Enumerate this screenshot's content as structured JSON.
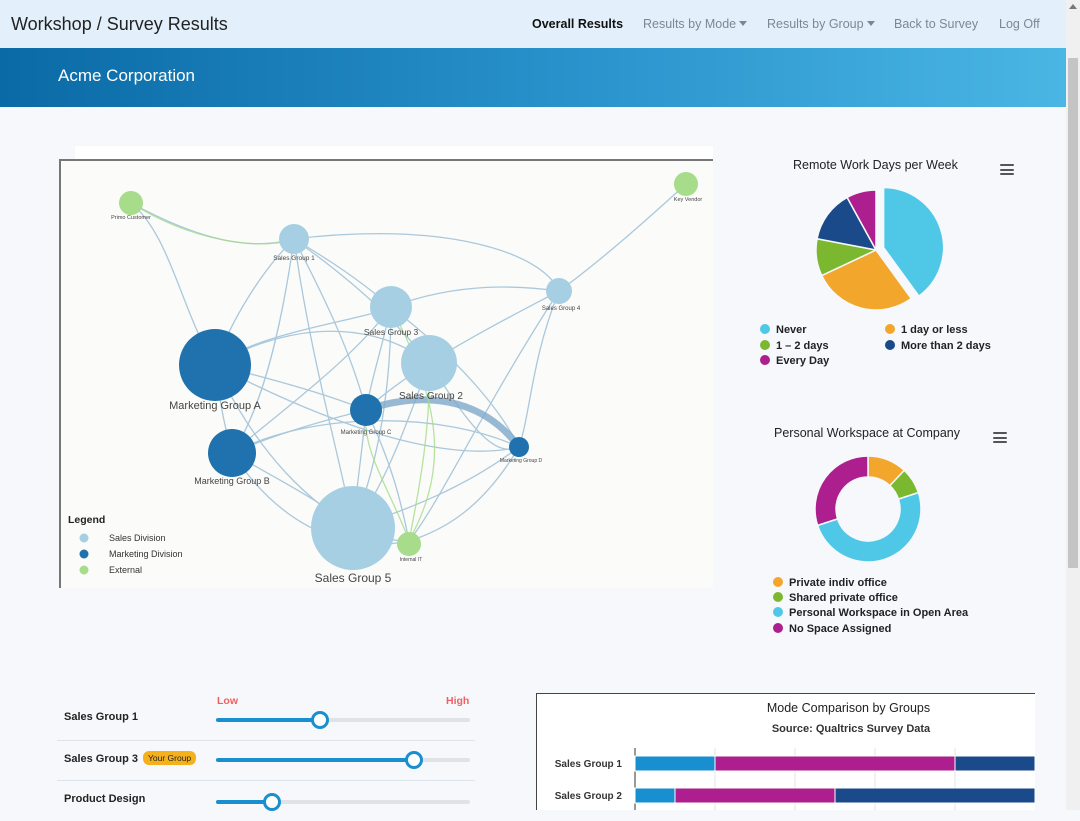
{
  "navbar": {
    "title": "Workshop / Survey Results",
    "items": [
      {
        "label": "Overall Results",
        "active": true
      },
      {
        "label": "Results by Mode",
        "dropdown": true
      },
      {
        "label": "Results by Group",
        "dropdown": true
      },
      {
        "label": "Back to Survey"
      },
      {
        "label": "Log Off"
      }
    ]
  },
  "banner": {
    "title": "Acme Corporation"
  },
  "network": {
    "legend_title": "Legend",
    "legend": [
      {
        "label": "Sales Division",
        "color": "#a7cfe4"
      },
      {
        "label": "Marketing Division",
        "color": "#1f72ad"
      },
      {
        "label": "External",
        "color": "#a6dc8a"
      }
    ],
    "nodes": [
      {
        "id": "primo",
        "label": "Primo Customer",
        "group": "External"
      },
      {
        "id": "key",
        "label": "Key Vendor",
        "group": "External"
      },
      {
        "id": "sg1",
        "label": "Sales Group 1",
        "group": "Sales Division"
      },
      {
        "id": "sg3",
        "label": "Sales Group 3",
        "group": "Sales Division"
      },
      {
        "id": "sg4",
        "label": "Sales Group 4",
        "group": "Sales Division"
      },
      {
        "id": "sg2",
        "label": "Sales Group 2",
        "group": "Sales Division"
      },
      {
        "id": "mga",
        "label": "Marketing Group A",
        "group": "Marketing Division"
      },
      {
        "id": "mgc",
        "label": "Marketing Group C",
        "group": "Marketing Division"
      },
      {
        "id": "mgd",
        "label": "Marketing Group D",
        "group": "Marketing Division"
      },
      {
        "id": "mgb",
        "label": "Marketing Group B",
        "group": "Marketing Division"
      },
      {
        "id": "sg5",
        "label": "Sales Group 5",
        "group": "Sales Division"
      },
      {
        "id": "iit",
        "label": "Internal IT",
        "group": "External"
      }
    ]
  },
  "remote_chart": {
    "title": "Remote Work Days per Week",
    "menu_icon": "hamburger-icon",
    "chart_data": {
      "type": "pie",
      "title": "Remote Work Days per Week",
      "categories": [
        "Never",
        "1 day or less",
        "1 – 2 days",
        "More than 2 days",
        "Every Day"
      ],
      "values": [
        40,
        28,
        10,
        14,
        8
      ],
      "colors": [
        "#4ec8e6",
        "#f2a72c",
        "#7cb82f",
        "#1b4a8a",
        "#ad1f8e"
      ]
    }
  },
  "workspace_chart": {
    "title": "Personal Workspace at Company",
    "menu_icon": "hamburger-icon",
    "chart_data": {
      "type": "pie",
      "title": "Personal Workspace at Company",
      "categories": [
        "Private indiv office",
        "Shared private office",
        "Personal Workspace in Open Area",
        "No Space Assigned"
      ],
      "values": [
        12,
        8,
        50,
        30
      ],
      "colors": [
        "#f2a72c",
        "#7cb82f",
        "#4ec8e6",
        "#ad1f8e"
      ]
    }
  },
  "sliders": {
    "low_label": "Low",
    "high_label": "High",
    "items": [
      {
        "label": "Sales Group 1",
        "value": 0.41
      },
      {
        "label": "Sales Group 3",
        "badge": "Your Group",
        "value": 0.78
      },
      {
        "label": "Product Design",
        "value": 0.22
      }
    ]
  },
  "mode_chart": {
    "title": "Mode Comparison by Groups",
    "subtitle": "Source: Qualtrics Survey Data",
    "chart_data": {
      "type": "bar",
      "orientation": "horizontal",
      "stacked": true,
      "title": "Mode Comparison by Groups",
      "subtitle": "Source: Qualtrics Survey Data",
      "categories": [
        "Sales Group 1",
        "Sales Group 2"
      ],
      "series": [
        {
          "values": [
            20,
            10
          ],
          "color": "#1a8fd0"
        },
        {
          "values": [
            60,
            40
          ],
          "color": "#ad1f8e"
        },
        {
          "values": [
            20,
            50
          ],
          "color": "#1b4a8a"
        }
      ]
    }
  }
}
